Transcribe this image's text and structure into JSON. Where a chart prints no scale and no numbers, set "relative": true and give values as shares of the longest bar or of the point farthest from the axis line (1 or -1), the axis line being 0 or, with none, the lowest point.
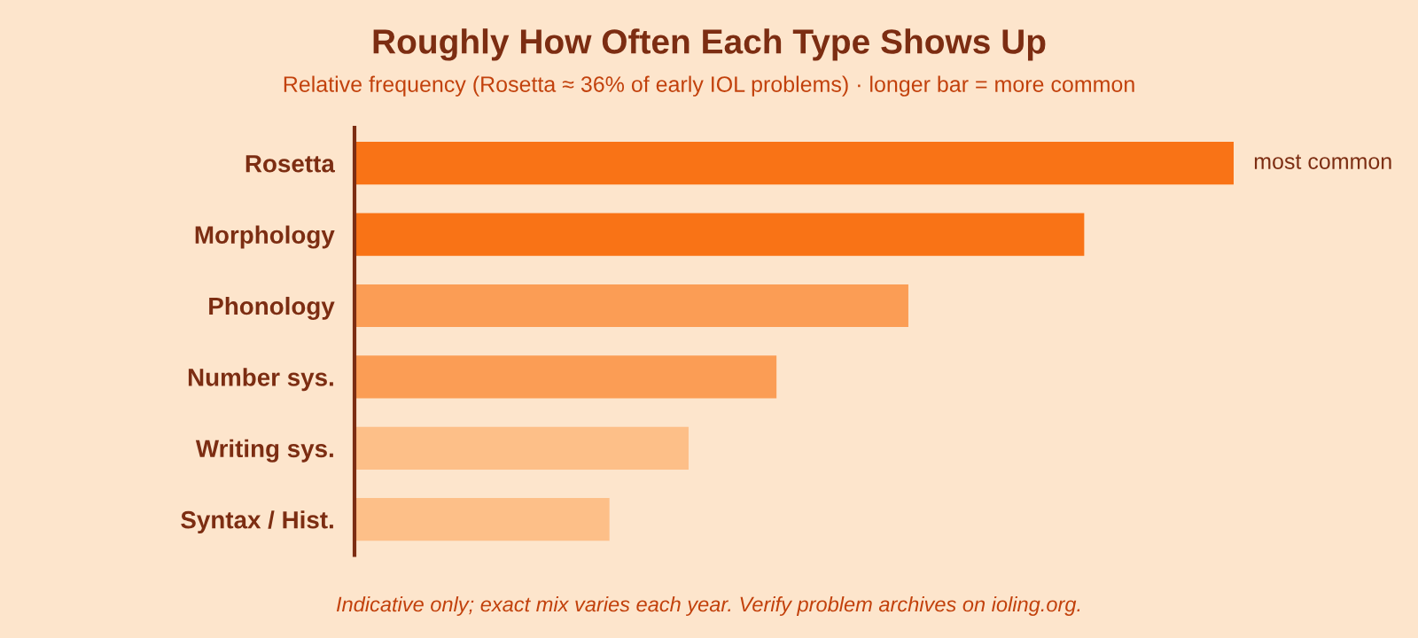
{
  "chart_data": {
    "type": "bar",
    "orientation": "horizontal",
    "relative": true,
    "title": "Roughly How Often Each Type Shows Up",
    "subtitle": "Relative frequency (Rosetta ≈ 36% of early IOL problems) · longer bar = more common",
    "categories": [
      "Rosetta",
      "Morphology",
      "Phonology",
      "Number sys.",
      "Writing sys.",
      "Syntax / Hist."
    ],
    "values": [
      1,
      0.83,
      0.63,
      0.48,
      0.38,
      0.29
    ],
    "colors": [
      "#f97316",
      "#f97316",
      "#fb9d55",
      "#fb9d55",
      "#fdbf88",
      "#fdbf88"
    ],
    "annotations": [
      {
        "text": "most common",
        "x": 1,
        "y": "Rosetta"
      },
      "Indicative only; exact mix varies each year. Verify problem archives on ioling.org."
    ],
    "grid": false,
    "legend": false
  }
}
